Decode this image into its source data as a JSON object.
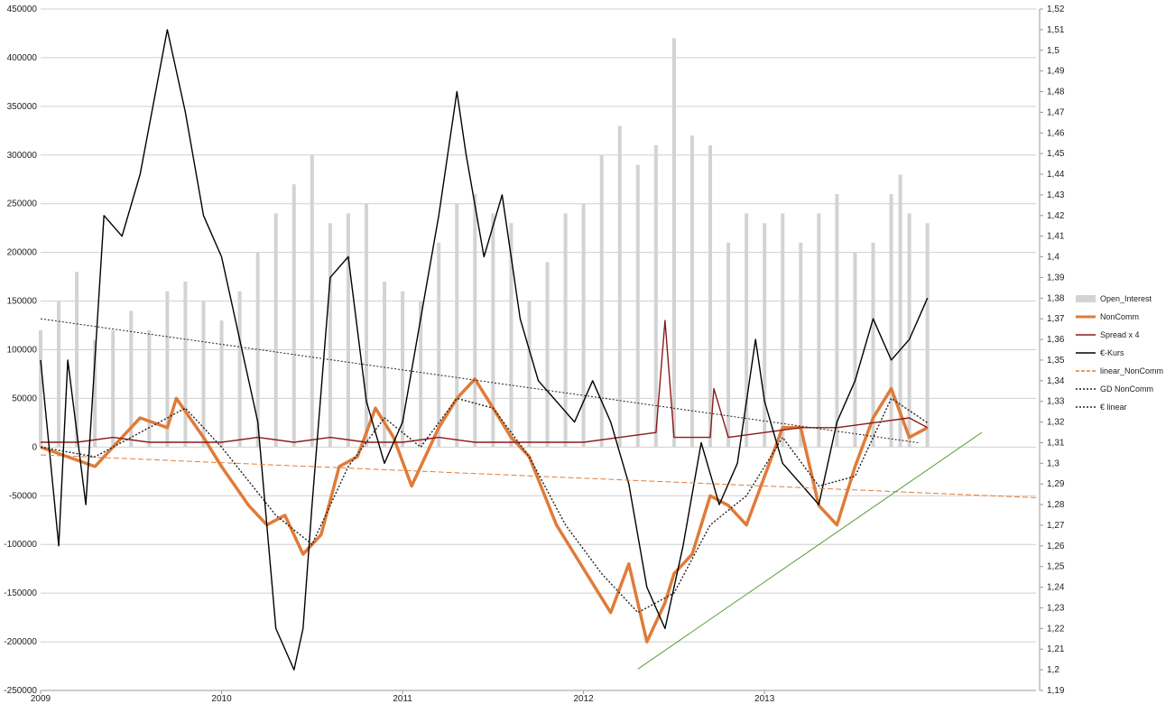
{
  "chart_data": {
    "type": "line",
    "title": "",
    "xlabel": "",
    "ylabel_left": "",
    "ylabel_right": "",
    "x_range": [
      2009.0,
      2014.5
    ],
    "x_ticks": [
      "2009",
      "2010",
      "2011",
      "2012",
      "2013"
    ],
    "x_tick_values": [
      2009,
      2010,
      2011,
      2012,
      2013
    ],
    "y_left_ticks": [
      "450000",
      "400000",
      "350000",
      "300000",
      "250000",
      "200000",
      "150000",
      "100000",
      "50000",
      "0",
      "-50000",
      "-100000",
      "-150000",
      "-200000",
      "-250000"
    ],
    "y_left_range": [
      -250000,
      450000
    ],
    "y_right_ticks": [
      "1,52",
      "1,51",
      "1,5",
      "1,49",
      "1,48",
      "1,47",
      "1,46",
      "1,45",
      "1,44",
      "1,43",
      "1,42",
      "1,41",
      "1,4",
      "1,39",
      "1,38",
      "1,37",
      "1,36",
      "1,35",
      "1,34",
      "1,33",
      "1,32",
      "1,31",
      "1,3",
      "1,29",
      "1,28",
      "1,27",
      "1,26",
      "1,25",
      "1,24",
      "1,23",
      "1,22",
      "1,21",
      "1,2",
      "1,19"
    ],
    "y_right_range": [
      1.19,
      1.52
    ],
    "grid": "horizontal",
    "legend_position": "right",
    "series": [
      {
        "name": "Open_Interest",
        "kind": "bar",
        "axis": "left",
        "color": "#d3d3d3",
        "x": [
          2009.0,
          2009.1,
          2009.2,
          2009.3,
          2009.4,
          2009.5,
          2009.6,
          2009.7,
          2009.8,
          2009.9,
          2010.0,
          2010.1,
          2010.2,
          2010.3,
          2010.4,
          2010.5,
          2010.6,
          2010.7,
          2010.8,
          2010.9,
          2011.0,
          2011.1,
          2011.2,
          2011.3,
          2011.4,
          2011.5,
          2011.6,
          2011.7,
          2011.8,
          2011.9,
          2012.0,
          2012.1,
          2012.2,
          2012.3,
          2012.4,
          2012.5,
          2012.6,
          2012.7,
          2012.8,
          2012.9,
          2013.0,
          2013.1,
          2013.2,
          2013.3,
          2013.4,
          2013.5,
          2013.6,
          2013.7,
          2013.75,
          2013.8,
          2013.9
        ],
        "values": [
          120000,
          150000,
          180000,
          110000,
          120000,
          140000,
          120000,
          160000,
          170000,
          150000,
          130000,
          160000,
          200000,
          240000,
          270000,
          300000,
          230000,
          240000,
          250000,
          170000,
          160000,
          150000,
          210000,
          250000,
          260000,
          240000,
          230000,
          150000,
          190000,
          240000,
          250000,
          300000,
          330000,
          290000,
          310000,
          420000,
          320000,
          310000,
          210000,
          240000,
          230000,
          240000,
          210000,
          240000,
          260000,
          200000,
          210000,
          260000,
          280000,
          240000,
          230000
        ]
      },
      {
        "name": "NonComm",
        "kind": "line",
        "axis": "left",
        "color": "#e07b39",
        "x": [
          2009.0,
          2009.15,
          2009.3,
          2009.45,
          2009.55,
          2009.7,
          2009.75,
          2009.9,
          2010.0,
          2010.15,
          2010.25,
          2010.35,
          2010.45,
          2010.55,
          2010.65,
          2010.75,
          2010.85,
          2010.95,
          2011.05,
          2011.2,
          2011.3,
          2011.4,
          2011.5,
          2011.6,
          2011.7,
          2011.85,
          2011.95,
          2012.05,
          2012.15,
          2012.25,
          2012.35,
          2012.45,
          2012.5,
          2012.6,
          2012.7,
          2012.8,
          2012.9,
          2013.0,
          2013.1,
          2013.2,
          2013.3,
          2013.4,
          2013.5,
          2013.6,
          2013.7,
          2013.8,
          2013.9
        ],
        "values": [
          0,
          -10000,
          -20000,
          10000,
          30000,
          20000,
          50000,
          10000,
          -20000,
          -60000,
          -80000,
          -70000,
          -110000,
          -90000,
          -20000,
          -10000,
          40000,
          10000,
          -40000,
          20000,
          50000,
          70000,
          40000,
          10000,
          -10000,
          -80000,
          -110000,
          -140000,
          -170000,
          -120000,
          -200000,
          -160000,
          -130000,
          -110000,
          -50000,
          -60000,
          -80000,
          -30000,
          20000,
          20000,
          -60000,
          -80000,
          -20000,
          30000,
          60000,
          10000,
          20000
        ]
      },
      {
        "name": "Spread x 4",
        "kind": "line",
        "axis": "left",
        "color": "#8b1a1a",
        "x": [
          2009.0,
          2009.2,
          2009.4,
          2009.6,
          2009.8,
          2010.0,
          2010.2,
          2010.4,
          2010.6,
          2010.8,
          2011.0,
          2011.2,
          2011.4,
          2011.6,
          2011.8,
          2012.0,
          2012.2,
          2012.4,
          2012.45,
          2012.5,
          2012.7,
          2012.72,
          2012.8,
          2013.0,
          2013.2,
          2013.4,
          2013.6,
          2013.8,
          2013.9
        ],
        "values": [
          5000,
          5000,
          10000,
          5000,
          5000,
          5000,
          10000,
          5000,
          10000,
          5000,
          5000,
          10000,
          5000,
          5000,
          5000,
          5000,
          10000,
          15000,
          130000,
          10000,
          10000,
          60000,
          10000,
          15000,
          20000,
          20000,
          25000,
          30000,
          20000
        ]
      },
      {
        "name": "€-Kurs",
        "kind": "line",
        "axis": "right",
        "color": "#000000",
        "x": [
          2009.0,
          2009.1,
          2009.15,
          2009.25,
          2009.35,
          2009.45,
          2009.55,
          2009.7,
          2009.8,
          2009.9,
          2010.0,
          2010.1,
          2010.2,
          2010.3,
          2010.4,
          2010.45,
          2010.5,
          2010.6,
          2010.7,
          2010.8,
          2010.9,
          2011.0,
          2011.1,
          2011.2,
          2011.3,
          2011.35,
          2011.45,
          2011.55,
          2011.65,
          2011.75,
          2011.85,
          2011.95,
          2012.05,
          2012.15,
          2012.25,
          2012.35,
          2012.45,
          2012.55,
          2012.65,
          2012.75,
          2012.85,
          2012.95,
          2013.0,
          2013.1,
          2013.2,
          2013.3,
          2013.4,
          2013.5,
          2013.6,
          2013.7,
          2013.8,
          2013.9
        ],
        "values": [
          1.35,
          1.26,
          1.35,
          1.28,
          1.42,
          1.41,
          1.44,
          1.51,
          1.47,
          1.42,
          1.4,
          1.36,
          1.32,
          1.22,
          1.2,
          1.22,
          1.28,
          1.39,
          1.4,
          1.33,
          1.3,
          1.32,
          1.37,
          1.42,
          1.48,
          1.45,
          1.4,
          1.43,
          1.37,
          1.34,
          1.33,
          1.32,
          1.34,
          1.32,
          1.29,
          1.24,
          1.22,
          1.26,
          1.31,
          1.28,
          1.3,
          1.36,
          1.33,
          1.3,
          1.29,
          1.28,
          1.32,
          1.34,
          1.37,
          1.35,
          1.36,
          1.38
        ]
      },
      {
        "name": "linear_NonComm",
        "kind": "trend",
        "axis": "left",
        "color": "#e07b39",
        "dash": "6,3",
        "x": [
          2009.0,
          2014.5
        ],
        "values": [
          -8000,
          -52000
        ]
      },
      {
        "name": "GD NonComm",
        "kind": "line",
        "axis": "left",
        "color": "#222222",
        "dash": "2,2",
        "x": [
          2009.0,
          2009.3,
          2009.6,
          2009.8,
          2010.0,
          2010.3,
          2010.5,
          2010.7,
          2010.9,
          2011.1,
          2011.3,
          2011.5,
          2011.7,
          2011.9,
          2012.1,
          2012.3,
          2012.5,
          2012.7,
          2012.9,
          2013.1,
          2013.3,
          2013.5,
          2013.7,
          2013.9
        ],
        "values": [
          0,
          -10000,
          20000,
          40000,
          0,
          -70000,
          -100000,
          -20000,
          30000,
          0,
          50000,
          40000,
          -10000,
          -80000,
          -130000,
          -170000,
          -150000,
          -80000,
          -50000,
          10000,
          -40000,
          -30000,
          50000,
          25000
        ]
      },
      {
        "name": "€ linear",
        "kind": "trend",
        "axis": "right",
        "color": "#222222",
        "dash": "2,2",
        "x": [
          2009.0,
          2013.85
        ],
        "values": [
          1.37,
          1.31
        ]
      },
      {
        "name": "",
        "kind": "trend",
        "axis": "left",
        "color": "#5a9e3a",
        "dash": "",
        "x": [
          2012.3,
          2014.2
        ],
        "values": [
          -228000,
          15000
        ]
      }
    ]
  },
  "legend": {
    "items": [
      {
        "label": "Open_Interest",
        "color": "#d3d3d3",
        "style": "bar"
      },
      {
        "label": "NonComm",
        "color": "#e07b39",
        "style": "thick"
      },
      {
        "label": "Spread x 4",
        "color": "#8b1a1a",
        "style": "solid"
      },
      {
        "label": "€-Kurs",
        "color": "#000000",
        "style": "solid"
      },
      {
        "label": "linear_NonComm",
        "color": "#e07b39",
        "style": "dashed"
      },
      {
        "label": "GD NonComm",
        "color": "#222222",
        "style": "dotted"
      },
      {
        "label": "€ linear",
        "color": "#222222",
        "style": "dotted"
      }
    ]
  }
}
